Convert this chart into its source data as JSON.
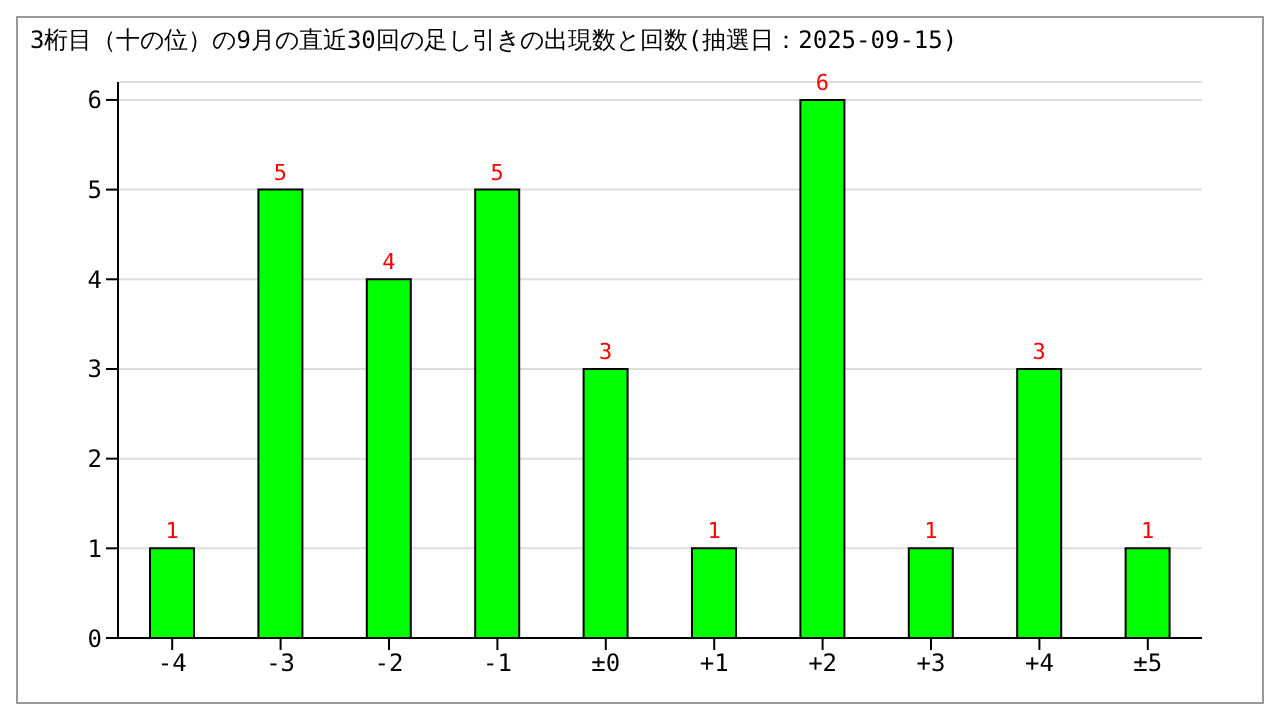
{
  "chart_data": {
    "type": "bar",
    "title": "3桁目（十の位）の9月の直近30回の足し引きの出現数と回数(抽選日：2025-09-15)",
    "categories": [
      "-4",
      "-3",
      "-2",
      "-1",
      "±0",
      "+1",
      "+2",
      "+3",
      "+4",
      "±5"
    ],
    "values": [
      1,
      5,
      4,
      5,
      3,
      1,
      6,
      1,
      3,
      1
    ],
    "color": "#00ff00",
    "ylim": [
      0,
      6.2
    ],
    "yticks": [
      0,
      1,
      2,
      3,
      4,
      5,
      6
    ],
    "grid": "y",
    "data_labels": true
  }
}
